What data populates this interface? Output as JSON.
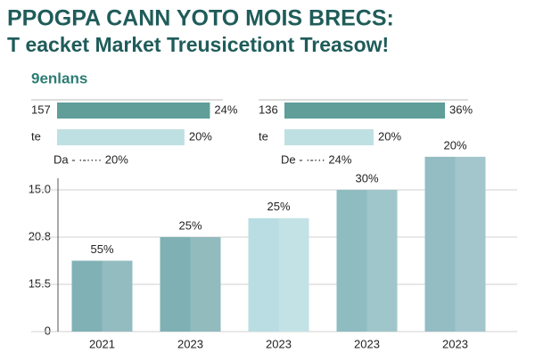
{
  "header": {
    "title": "PPOGPA CANN YOTO MOIS BRECS:",
    "subtitle": "T eacket Market Treusicetiont Treasow!"
  },
  "section": "9enlans",
  "chart_data": [
    {
      "type": "hbar",
      "categories": [
        "157",
        "te"
      ],
      "values": [
        24,
        20
      ],
      "value_labels": [
        "24%",
        "20%"
      ],
      "colors": [
        "#5f9e99",
        "#bfe0e3"
      ],
      "xlim": [
        0,
        28
      ],
      "note": "Da - ·-···· 20%"
    },
    {
      "type": "hbar",
      "categories": [
        "136",
        "te"
      ],
      "values": [
        36,
        20
      ],
      "value_labels": [
        "36%",
        "20%"
      ],
      "colors": [
        "#5f9e99",
        "#bfe0e3"
      ],
      "xlim": [
        0,
        40
      ],
      "note": "De - ·-··· 24%"
    },
    {
      "type": "bar",
      "categories": [
        "2021",
        "2023",
        "2023",
        "2023",
        "2023"
      ],
      "values": [
        1.5,
        2.0,
        2.4,
        3.0,
        3.7
      ],
      "annotations": [
        "55%",
        "25%",
        "25%",
        "30%",
        "20%"
      ],
      "colors": [
        "#80b1b5",
        "#7fb0b3",
        "#b9dde2",
        "#8fbcc1",
        "#93bcc3"
      ],
      "ylim": [
        0,
        4
      ],
      "yticks": [
        0,
        {
          "value": 1,
          "label": "15.5"
        },
        {
          "value": 2,
          "label": "20.8"
        },
        {
          "value": 3,
          "label": "15.0"
        }
      ],
      "grid": true
    }
  ]
}
